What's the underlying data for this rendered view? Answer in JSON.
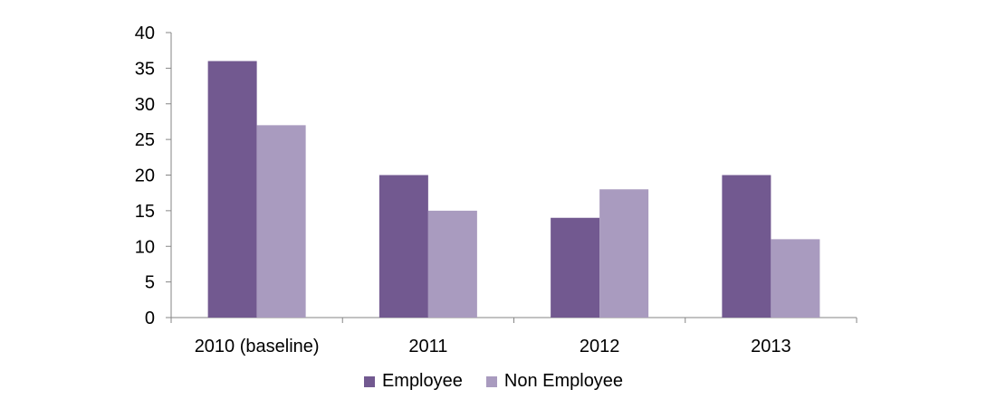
{
  "chart_data": {
    "type": "bar",
    "categories": [
      "2010 (baseline)",
      "2011",
      "2012",
      "2013"
    ],
    "series": [
      {
        "name": "Employee",
        "values": [
          36,
          20,
          14,
          20
        ],
        "color": "#725990"
      },
      {
        "name": "Non Employee",
        "values": [
          27,
          15,
          18,
          11
        ],
        "color": "#a99bbf"
      }
    ],
    "ylim": [
      0,
      40
    ],
    "yticks": [
      0,
      5,
      10,
      15,
      20,
      25,
      30,
      35,
      40
    ],
    "grid": false,
    "legend_position": "bottom"
  }
}
